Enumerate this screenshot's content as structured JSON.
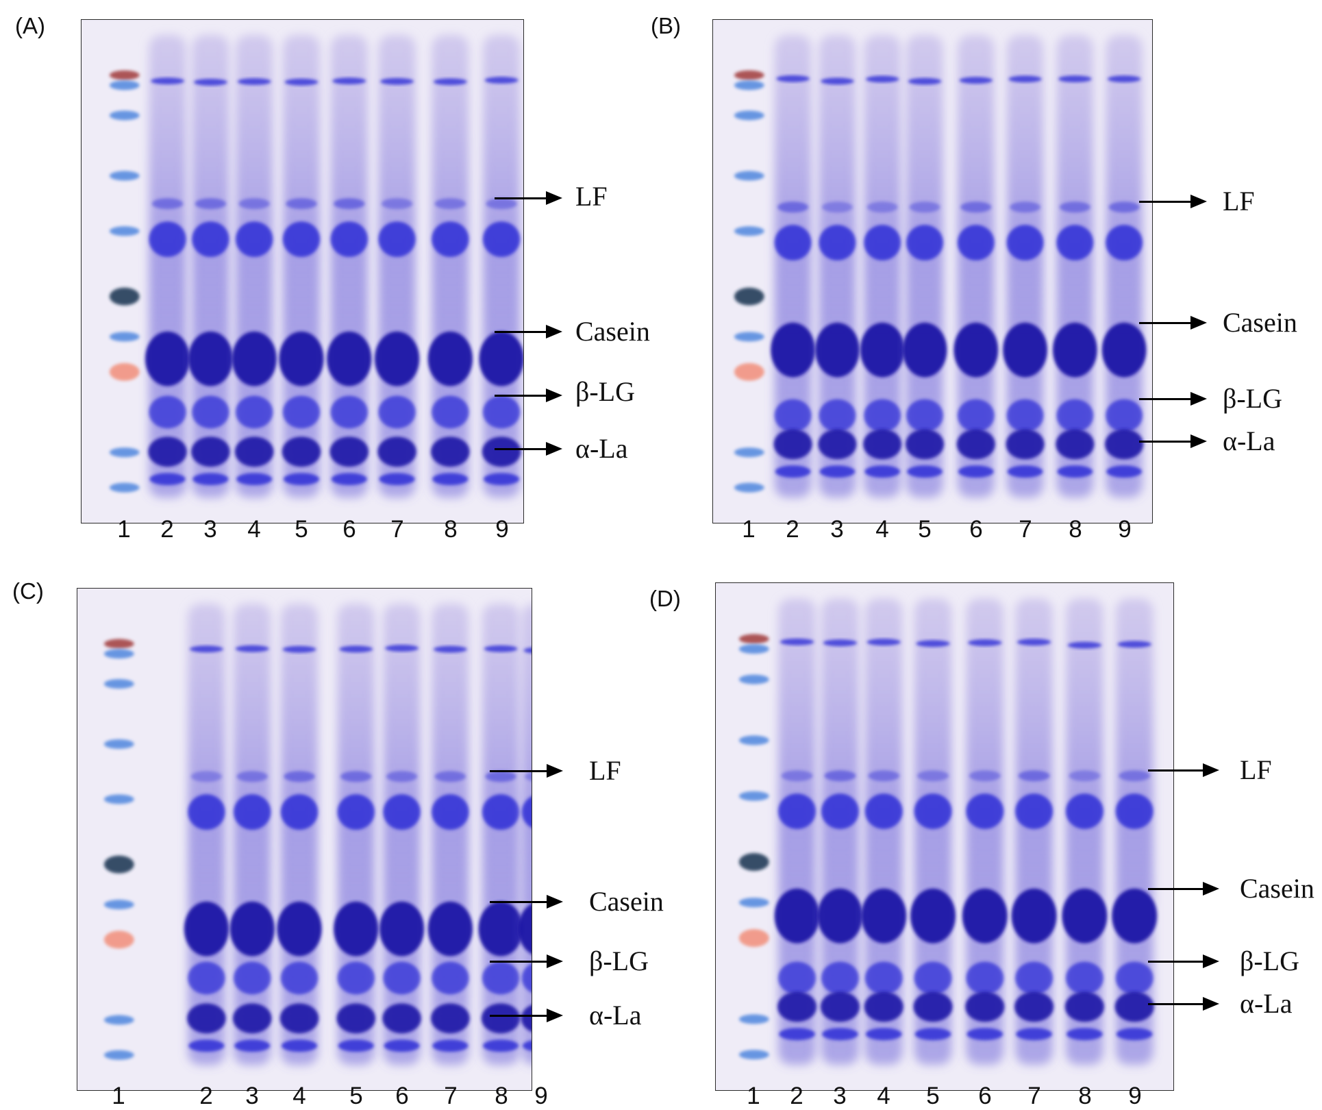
{
  "figure": {
    "panels": [
      {
        "letter": "(A)",
        "lanes": [
          "1",
          "2",
          "3",
          "4",
          "5",
          "6",
          "7",
          "8",
          "9"
        ],
        "bands": [
          "LF",
          "Casein",
          "β-LG",
          "α-La"
        ]
      },
      {
        "letter": "(B)",
        "lanes": [
          "1",
          "2",
          "3",
          "4",
          "5",
          "6",
          "7",
          "8",
          "9"
        ],
        "bands": [
          "LF",
          "Casein",
          "β-LG",
          "α-La"
        ]
      },
      {
        "letter": "(C)",
        "lanes": [
          "1",
          "2",
          "3",
          "4",
          "5",
          "6",
          "7",
          "8",
          "9"
        ],
        "bands": [
          "LF",
          "Casein",
          "β-LG",
          "α-La"
        ]
      },
      {
        "letter": "(D)",
        "lanes": [
          "1",
          "2",
          "3",
          "4",
          "5",
          "6",
          "7",
          "8",
          "9"
        ],
        "bands": [
          "LF",
          "Casein",
          "β-LG",
          "α-La"
        ]
      }
    ],
    "colors": {
      "gel_background": "#efecf7",
      "smear": "#b9aee6",
      "band_dark": "#1b12a6",
      "band_mid": "#2f2fd6",
      "marker_blue": "#4f86de",
      "marker_red": "#a03a3a",
      "marker_orange": "#f27a5f",
      "marker_dark": "#16324f"
    }
  }
}
